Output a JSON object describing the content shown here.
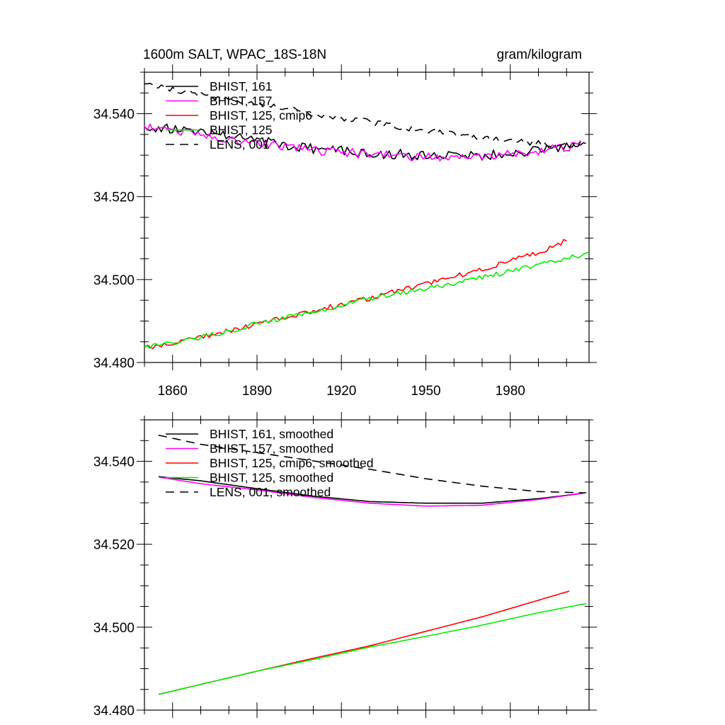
{
  "chart_data": [
    {
      "type": "line",
      "title": "1600m SALT, WPAC_18S-18N",
      "units": "gram/kilogram",
      "xlim": [
        1850,
        2008
      ],
      "ylim": [
        34.48,
        34.55
      ],
      "xticks": [
        1860,
        1890,
        1920,
        1950,
        1980
      ],
      "xticklabels": [
        "1860",
        "1890",
        "1920",
        "1950",
        "1980"
      ],
      "yticks": [
        34.48,
        34.5,
        34.52,
        34.54
      ],
      "yticklabels": [
        "34.480",
        "34.500",
        "34.520",
        "34.540"
      ],
      "legend_position": "top-left",
      "series": [
        {
          "name": "BHIST, 161",
          "color": "#000000",
          "dash": "solid",
          "noise": 0.0012,
          "x": [
            1850,
            1870,
            1890,
            1910,
            1930,
            1950,
            1970,
            1990,
            2005
          ],
          "y": [
            34.537,
            34.5355,
            34.5335,
            34.5315,
            34.5305,
            34.53,
            34.5298,
            34.5312,
            34.5325
          ]
        },
        {
          "name": "BHIST, 157",
          "color": "#ff00ff",
          "dash": "solid",
          "noise": 0.0011,
          "x": [
            1850,
            1870,
            1890,
            1910,
            1930,
            1950,
            1970,
            1990,
            2005
          ],
          "y": [
            34.537,
            34.535,
            34.533,
            34.5312,
            34.5302,
            34.5295,
            34.5298,
            34.531,
            34.5325
          ]
        },
        {
          "name": "BHIST, 125, cmip6",
          "color": "#ff0000",
          "dash": "solid",
          "noise": 0.0006,
          "x": [
            1850,
            1870,
            1890,
            1910,
            1930,
            1950,
            1970,
            1990,
            2000
          ],
          "y": [
            34.4835,
            34.486,
            34.4893,
            34.4925,
            34.4955,
            34.499,
            34.5025,
            34.5065,
            34.5095
          ]
        },
        {
          "name": "BHIST, 125",
          "color": "#00ee00",
          "dash": "solid",
          "noise": 0.0006,
          "x": [
            1850,
            1870,
            1890,
            1910,
            1930,
            1950,
            1970,
            1990,
            2008
          ],
          "y": [
            34.4835,
            34.486,
            34.4893,
            34.4922,
            34.4953,
            34.4978,
            34.5005,
            34.5035,
            34.5063
          ]
        },
        {
          "name": "LENS, 001",
          "color": "#000000",
          "dash": "dashed",
          "noise": 0.0007,
          "x": [
            1850,
            1870,
            1890,
            1910,
            1930,
            1950,
            1970,
            1990,
            2008
          ],
          "y": [
            34.547,
            34.5445,
            34.5425,
            34.54,
            34.538,
            34.5358,
            34.5342,
            34.5328,
            34.5325
          ]
        }
      ]
    },
    {
      "type": "line",
      "title": "",
      "units": "",
      "xlim": [
        1850,
        2008
      ],
      "ylim": [
        34.48,
        34.55
      ],
      "xticks": [
        1860,
        1890,
        1920,
        1950,
        1980
      ],
      "xticklabels": [
        "",
        "",
        "",
        "",
        ""
      ],
      "yticks": [
        34.48,
        34.5,
        34.52,
        34.54
      ],
      "yticklabels": [
        "34.480",
        "34.500",
        "34.520",
        "34.540"
      ],
      "legend_position": "top-left",
      "series": [
        {
          "name": "BHIST, 161, smoothed",
          "color": "#000000",
          "dash": "solid",
          "noise": 0,
          "x": [
            1855,
            1870,
            1890,
            1910,
            1930,
            1950,
            1970,
            1990,
            2006
          ],
          "y": [
            34.5363,
            34.5353,
            34.5334,
            34.5316,
            34.5303,
            34.5299,
            34.5299,
            34.531,
            34.5323
          ]
        },
        {
          "name": "BHIST, 157, smoothed",
          "color": "#ff00ff",
          "dash": "solid",
          "noise": 0,
          "x": [
            1855,
            1870,
            1890,
            1910,
            1930,
            1950,
            1970,
            1990,
            2006
          ],
          "y": [
            34.5362,
            34.5346,
            34.5331,
            34.5313,
            34.5299,
            34.5292,
            34.5294,
            34.5308,
            34.5323
          ]
        },
        {
          "name": "BHIST, 125, cmip6, smoothed",
          "color": "#ff0000",
          "dash": "solid",
          "noise": 0,
          "x": [
            1855,
            1870,
            1890,
            1910,
            1930,
            1950,
            1970,
            1990,
            2001
          ],
          "y": [
            34.4838,
            34.4862,
            34.4894,
            34.4925,
            34.4955,
            34.499,
            34.5025,
            34.5065,
            34.5087
          ]
        },
        {
          "name": "BHIST, 125, smoothed",
          "color": "#00ee00",
          "dash": "solid",
          "noise": 0,
          "x": [
            1855,
            1870,
            1890,
            1910,
            1930,
            1950,
            1970,
            1990,
            2007
          ],
          "y": [
            34.4838,
            34.4862,
            34.4894,
            34.4922,
            34.4952,
            34.4978,
            34.5005,
            34.5035,
            34.5057
          ]
        },
        {
          "name": "LENS, 001, smoothed",
          "color": "#000000",
          "dash": "dashed",
          "noise": 0,
          "x": [
            1855,
            1870,
            1890,
            1910,
            1930,
            1950,
            1970,
            1990,
            2007
          ],
          "y": [
            34.5463,
            34.5441,
            34.5421,
            34.5401,
            34.5381,
            34.5358,
            34.534,
            34.5327,
            34.5324
          ]
        }
      ]
    }
  ]
}
